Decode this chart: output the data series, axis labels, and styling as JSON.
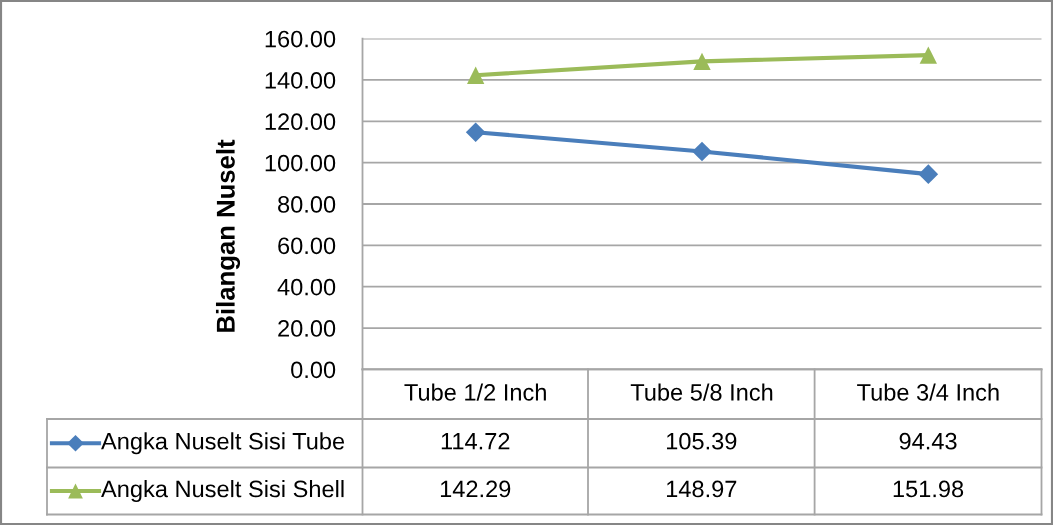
{
  "chart_data": {
    "type": "line",
    "ylabel": "Bilangan Nuselt",
    "categories": [
      "Tube 1/2 Inch",
      "Tube 5/8 Inch",
      "Tube 3/4 Inch"
    ],
    "series": [
      {
        "name": "Angka Nuselt Sisi Tube",
        "color": "#4a7ebb",
        "marker": "diamond",
        "values": [
          114.72,
          105.39,
          94.43
        ]
      },
      {
        "name": "Angka Nuselt Sisi Shell",
        "color": "#9bbb59",
        "marker": "triangle",
        "values": [
          142.29,
          148.97,
          151.98
        ]
      }
    ],
    "ylim": [
      0,
      160
    ],
    "yticks": [
      {
        "value": 0,
        "label": "0.00"
      },
      {
        "value": 20,
        "label": "20.00"
      },
      {
        "value": 40,
        "label": "40.00"
      },
      {
        "value": 60,
        "label": "60.00"
      },
      {
        "value": 80,
        "label": "80.00"
      },
      {
        "value": 100,
        "label": "100.00"
      },
      {
        "value": 120,
        "label": "120.00"
      },
      {
        "value": 140,
        "label": "140.00"
      },
      {
        "value": 160,
        "label": "160.00"
      }
    ],
    "grid": "y",
    "legend": "bottom",
    "data_labels": true,
    "line_style": "solid"
  }
}
